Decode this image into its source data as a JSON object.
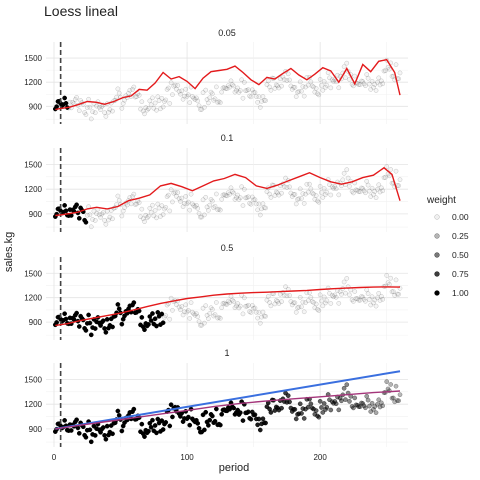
{
  "title": "Loess lineal",
  "xlabel": "period",
  "ylabel": "sales.kg",
  "legend": {
    "title": "weight",
    "entries": [
      {
        "label": "0.00",
        "value": 0.0
      },
      {
        "label": "0.25",
        "value": 0.25
      },
      {
        "label": "0.50",
        "value": 0.5
      },
      {
        "label": "0.75",
        "value": 0.75
      },
      {
        "label": "1.00",
        "value": 1.0
      }
    ]
  },
  "colors": {
    "loess": "#e31a1c",
    "linear": "#3a6fdf",
    "overlap": "#a4357a",
    "marker": "#444444",
    "points": "#000000"
  },
  "chart_data": {
    "type": "scatter",
    "xlim": [
      -6,
      266
    ],
    "ylim": [
      680,
      1700
    ],
    "x_ticks": [
      0,
      100,
      200
    ],
    "x_tick_labels": [
      "0",
      "100",
      "200"
    ],
    "y_ticks": [
      900,
      1200,
      1500
    ],
    "y_tick_labels": [
      "900",
      "1200",
      "1500"
    ],
    "vertical_marker_x": 5,
    "grid": true,
    "n_points": 260,
    "facets": [
      {
        "strip": "0.05",
        "span": 0.05,
        "fit_curve": {
          "x": [
            1,
            4,
            8,
            12,
            18,
            25,
            32,
            38,
            45,
            52,
            58,
            64,
            70,
            76,
            82,
            88,
            94,
            100,
            106,
            112,
            118,
            124,
            130,
            136,
            142,
            148,
            154,
            160,
            166,
            172,
            178,
            184,
            190,
            196,
            202,
            208,
            214,
            220,
            226,
            232,
            238,
            244,
            250,
            256,
            260
          ],
          "y": [
            860,
            870,
            880,
            890,
            920,
            960,
            950,
            925,
            960,
            1010,
            1030,
            1110,
            1100,
            1190,
            1320,
            1240,
            1270,
            1210,
            1120,
            1250,
            1330,
            1345,
            1360,
            1400,
            1320,
            1230,
            1170,
            1260,
            1240,
            1310,
            1370,
            1290,
            1230,
            1300,
            1380,
            1340,
            1200,
            1370,
            1180,
            1420,
            1330,
            1460,
            1480,
            1320,
            1040
          ]
        }
      },
      {
        "strip": "0.1",
        "span": 0.1,
        "fit_curve": {
          "x": [
            1,
            6,
            12,
            18,
            25,
            32,
            40,
            48,
            56,
            64,
            72,
            80,
            88,
            96,
            104,
            112,
            120,
            128,
            136,
            144,
            152,
            160,
            168,
            176,
            184,
            192,
            200,
            208,
            216,
            224,
            232,
            240,
            248,
            254,
            260
          ],
          "y": [
            880,
            890,
            905,
            920,
            960,
            980,
            960,
            990,
            1060,
            1090,
            1130,
            1240,
            1270,
            1230,
            1180,
            1240,
            1300,
            1330,
            1380,
            1340,
            1240,
            1210,
            1250,
            1300,
            1350,
            1400,
            1340,
            1290,
            1260,
            1290,
            1340,
            1370,
            1460,
            1380,
            1060
          ]
        }
      },
      {
        "strip": "0.5",
        "span": 0.5,
        "fit_curve": {
          "x": [
            1,
            10,
            20,
            30,
            40,
            50,
            60,
            70,
            80,
            90,
            100,
            110,
            120,
            130,
            140,
            150,
            160,
            170,
            180,
            190,
            200,
            210,
            220,
            230,
            240,
            250,
            260
          ],
          "y": [
            860,
            880,
            920,
            950,
            980,
            1010,
            1050,
            1090,
            1130,
            1160,
            1190,
            1210,
            1230,
            1245,
            1255,
            1262,
            1268,
            1275,
            1282,
            1290,
            1300,
            1310,
            1318,
            1325,
            1330,
            1332,
            1330
          ]
        }
      },
      {
        "strip": "1",
        "span": 1.0,
        "fit_curve": {
          "x": [
            1,
            20,
            40,
            60,
            80,
            100,
            120,
            140,
            160,
            180,
            200,
            220,
            240,
            260
          ],
          "y": [
            900,
            945,
            990,
            1035,
            1080,
            1125,
            1170,
            1210,
            1240,
            1265,
            1290,
            1315,
            1340,
            1360
          ]
        },
        "linear_fit": {
          "x": [
            1,
            260
          ],
          "y": [
            900,
            1600
          ]
        }
      }
    ]
  }
}
